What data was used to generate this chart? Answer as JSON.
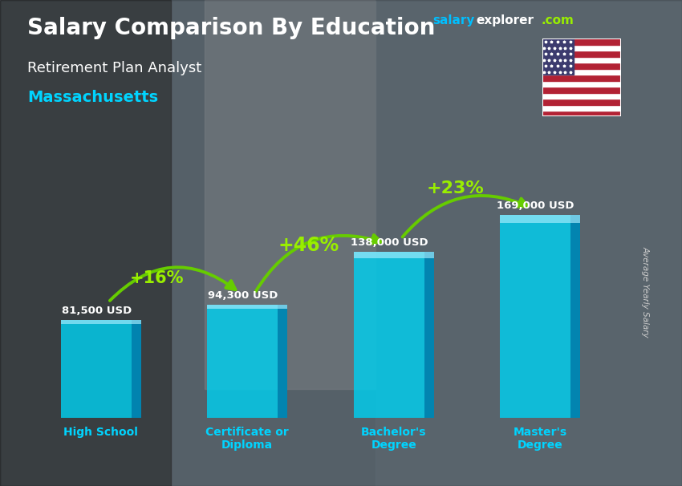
{
  "title_main": "Salary Comparison By Education",
  "title_sub": "Retirement Plan Analyst",
  "title_location": "Massachusetts",
  "ylabel": "Average Yearly Salary",
  "categories": [
    "High School",
    "Certificate or\nDiploma",
    "Bachelor's\nDegree",
    "Master's\nDegree"
  ],
  "values": [
    81500,
    94300,
    138000,
    169000
  ],
  "value_labels": [
    "81,500 USD",
    "94,300 USD",
    "138,000 USD",
    "169,000 USD"
  ],
  "pct_changes": [
    "+16%",
    "+46%",
    "+23%"
  ],
  "bar_face_color": "#00cfef",
  "bar_right_color": "#007baa",
  "bar_top_color": "#aaeeff",
  "title_color": "#ffffff",
  "subtitle_color": "#ffffff",
  "location_color": "#00d4ff",
  "value_label_color": "#ffffff",
  "pct_color": "#99ee00",
  "arrow_color": "#66cc00",
  "xlabel_color": "#00d4ff",
  "ylabel_color": "#cccccc",
  "bg_color": "#4a5a6a",
  "ylim_max": 210000,
  "bar_width": 0.55,
  "figsize": [
    8.5,
    6.06
  ],
  "dpi": 100,
  "salary_color": "#00bfff",
  "explorer_color": "#ffffff",
  "com_color": "#99ee00",
  "watermark_salary": "salary",
  "watermark_explorer": "explorer",
  "watermark_com": ".com"
}
